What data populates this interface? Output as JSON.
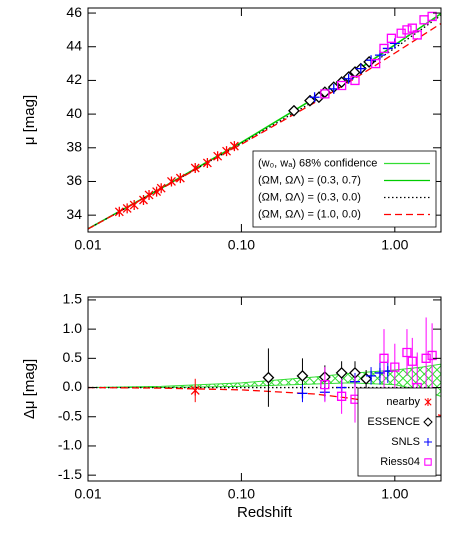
{
  "chart_data": [
    {
      "type": "scatter",
      "ylabel": "μ [mag]",
      "xscale": "log",
      "xlim": [
        0.01,
        2
      ],
      "xticks": [
        0.01,
        {
          "value": 0.1,
          "label": "0.10"
        },
        {
          "value": 1,
          "label": "1.00"
        }
      ],
      "ylim": [
        33,
        46.3
      ],
      "yticks": [
        34,
        36,
        38,
        40,
        42,
        44,
        46
      ],
      "grid": false,
      "legend": "lower right",
      "series": [
        {
          "color": "#ff0000",
          "marker": "asterisk",
          "x": [
            0.016,
            0.018,
            0.02,
            0.023,
            0.025,
            0.028,
            0.03,
            0.035,
            0.04,
            0.05,
            0.06,
            0.07,
            0.08,
            0.09
          ],
          "values": [
            34.2,
            34.4,
            34.6,
            34.9,
            35.2,
            35.4,
            35.6,
            36.0,
            36.2,
            36.8,
            37.1,
            37.5,
            37.8,
            38.1
          ]
        },
        {
          "color": "#000000",
          "marker": "diamond",
          "x": [
            0.22,
            0.28,
            0.32,
            0.35,
            0.4,
            0.45,
            0.5,
            0.55,
            0.6,
            0.68
          ],
          "values": [
            40.2,
            40.8,
            41.0,
            41.3,
            41.6,
            41.9,
            42.2,
            42.5,
            42.7,
            43.1
          ]
        },
        {
          "color": "#0000ff",
          "marker": "plus",
          "x": [
            0.3,
            0.4,
            0.5,
            0.6,
            0.7,
            0.8,
            0.9,
            1.0
          ],
          "values": [
            41.0,
            41.5,
            42.1,
            42.7,
            43.2,
            43.5,
            43.9,
            44.2
          ]
        },
        {
          "color": "#ff00ff",
          "marker": "square",
          "x": [
            0.35,
            0.45,
            0.55,
            0.75,
            0.85,
            0.95,
            1.1,
            1.2,
            1.3,
            1.4,
            1.55,
            1.75
          ],
          "values": [
            41.2,
            41.7,
            42.0,
            43.0,
            43.9,
            44.5,
            44.8,
            45.0,
            45.1,
            44.7,
            45.6,
            45.8
          ]
        }
      ],
      "lines": [
        {
          "name": "(w₀, wₐ)  68% confidence",
          "color": "#33dd33",
          "style": "solid",
          "x": [
            0.01,
            0.03,
            0.1,
            0.3,
            0.5,
            1,
            1.5,
            2
          ],
          "values": [
            33.2,
            35.61,
            38.33,
            40.96,
            42.28,
            44.12,
            45.21,
            45.98
          ]
        },
        {
          "name": "(ΩM, ΩΛ) = (0.3, 0.7)",
          "color": "#00cc00",
          "style": "solid",
          "x": [
            0.01,
            0.03,
            0.1,
            0.3,
            0.5,
            1,
            1.5,
            2
          ],
          "values": [
            33.18,
            35.59,
            38.31,
            40.94,
            42.26,
            44.1,
            45.19,
            45.96
          ]
        },
        {
          "name": "(ΩM, ΩΛ) = (0.3, 0.0)",
          "color": "#000000",
          "style": "dotted",
          "x": [
            0.01,
            0.03,
            0.1,
            0.3,
            0.5,
            1,
            1.5,
            2
          ],
          "values": [
            33.18,
            35.58,
            38.25,
            40.79,
            42.07,
            43.92,
            45.05,
            45.86
          ]
        },
        {
          "name": "(ΩM, ΩΛ) = (1.0, 0.0)",
          "color": "#ff0000",
          "style": "dashed",
          "x": [
            0.01,
            0.03,
            0.1,
            0.3,
            0.5,
            1,
            1.5,
            2
          ],
          "values": [
            33.18,
            35.57,
            38.21,
            40.68,
            41.89,
            43.62,
            44.65,
            45.38
          ]
        }
      ]
    },
    {
      "type": "scatter",
      "ylabel": "Δμ [mag]",
      "xlabel": "Redshift",
      "xscale": "log",
      "xlim": [
        0.01,
        2
      ],
      "xticks": [
        0.01,
        {
          "value": 0.1,
          "label": "0.10"
        },
        {
          "value": 1,
          "label": "1.00"
        }
      ],
      "ylim": [
        -1.6,
        1.55
      ],
      "yticks": [
        -1.5,
        {
          "value": -1,
          "label": "-1.0"
        },
        -0.5,
        {
          "value": 0,
          "label": "0.0"
        },
        0.5,
        {
          "value": 1,
          "label": "1.0"
        },
        1.5
      ],
      "grid": false,
      "legend": "lower right",
      "band": {
        "color": "#33dd33",
        "x": [
          0.01,
          0.03,
          0.1,
          0.3,
          0.5,
          1,
          1.5,
          2
        ],
        "lower": [
          0,
          0,
          0.02,
          0.06,
          0.08,
          0.05,
          -0.05,
          -0.15
        ],
        "upper": [
          0,
          0.02,
          0.08,
          0.18,
          0.24,
          0.3,
          0.35,
          0.4
        ]
      },
      "lines": [
        {
          "color": "#000000",
          "style": "dotted",
          "x": [
            0.01,
            2
          ],
          "values": [
            0,
            0
          ]
        },
        {
          "color": "#ff0000",
          "style": "dashed",
          "x": [
            0.01,
            0.03,
            0.1,
            0.3,
            0.5,
            1,
            1.5,
            2
          ],
          "values": [
            0,
            -0.01,
            -0.04,
            -0.11,
            -0.18,
            -0.3,
            -0.4,
            -0.48
          ]
        }
      ],
      "series": [
        {
          "name": "nearby",
          "color": "#ff0000",
          "marker": "asterisk",
          "x": [
            0.05
          ],
          "values": [
            -0.05
          ],
          "errors": [
            0.2
          ]
        },
        {
          "name": "ESSENCE",
          "color": "#000000",
          "marker": "diamond",
          "x": [
            0.15,
            0.25,
            0.35,
            0.45,
            0.55,
            0.65
          ],
          "values": [
            0.17,
            0.2,
            0.18,
            0.25,
            0.25,
            0.15
          ],
          "errors": [
            0.5,
            0.3,
            0.2,
            0.2,
            0.2,
            0.15
          ]
        },
        {
          "name": "SNLS",
          "color": "#0000ff",
          "marker": "plus",
          "x": [
            0.25,
            0.35,
            0.45,
            0.55,
            0.7,
            0.8,
            0.9
          ],
          "values": [
            -0.1,
            -0.08,
            0.0,
            0.1,
            0.2,
            0.25,
            0.28
          ],
          "errors": [
            0.15,
            0.15,
            0.15,
            0.15,
            0.15,
            0.2,
            0.2
          ]
        },
        {
          "name": "Riess04",
          "color": "#ff00ff",
          "marker": "square",
          "x": [
            0.35,
            0.45,
            0.55,
            0.85,
            1.0,
            1.2,
            1.3,
            1.4,
            1.6,
            1.75
          ],
          "values": [
            0.05,
            -0.15,
            -0.2,
            0.5,
            0.35,
            0.6,
            0.45,
            0.0,
            0.5,
            0.55
          ],
          "errors": [
            0.3,
            0.3,
            0.4,
            0.5,
            0.4,
            0.4,
            0.4,
            0.6,
            0.7,
            0.55
          ]
        }
      ]
    }
  ]
}
